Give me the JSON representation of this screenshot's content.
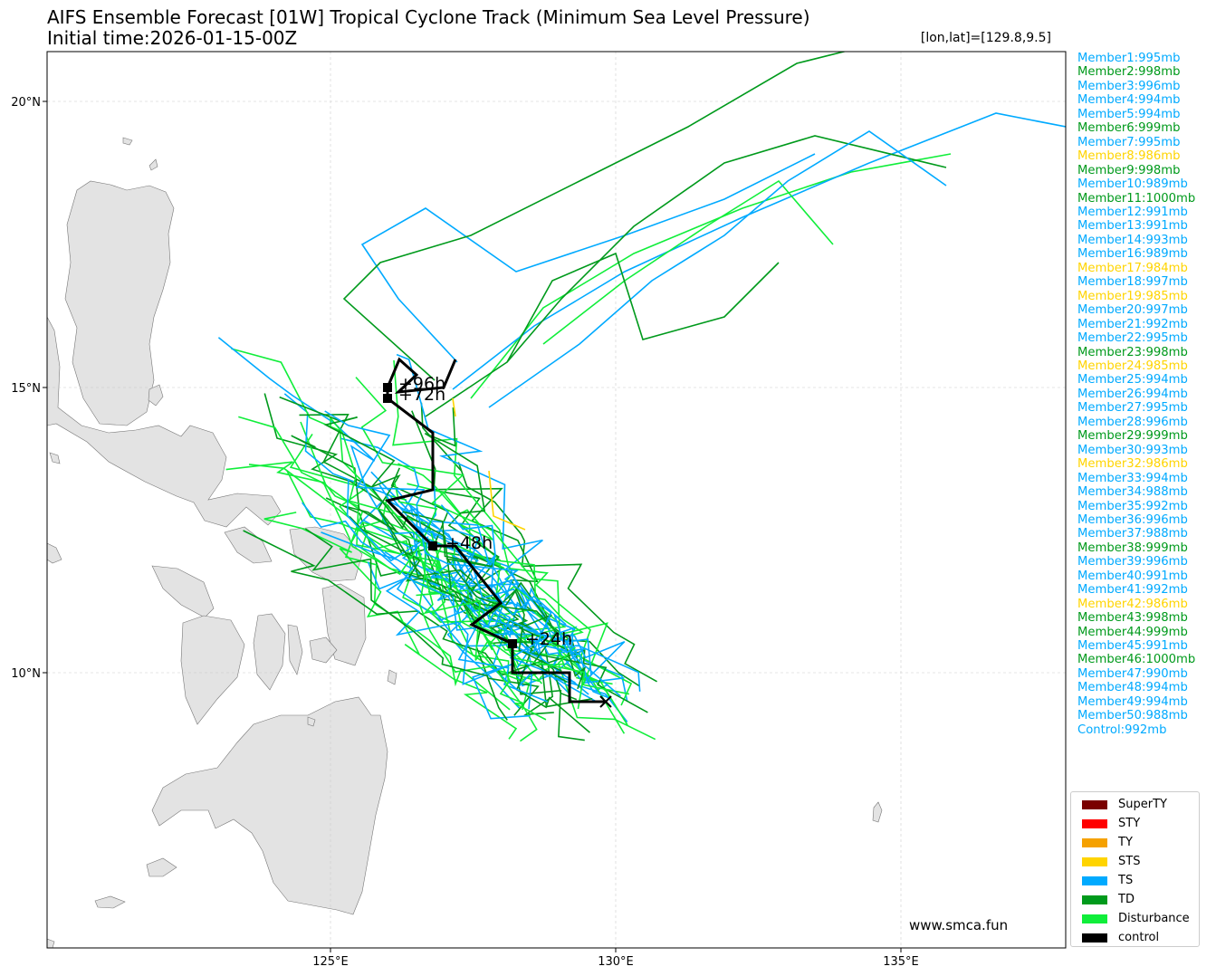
{
  "header": {
    "title": "AIFS Ensemble Forecast [01W] Tropical Cyclone Track (Minimum Sea Level Pressure)",
    "init_time": "Initial time:2026-01-15-00Z",
    "coord_readout": "[lon,lat]=[129.8,9.5]"
  },
  "axes": {
    "lat_ticks": [
      "20°N",
      "15°N",
      "10°N"
    ],
    "lon_ticks": [
      "125°E",
      "130°E",
      "135°E"
    ]
  },
  "colors": {
    "land": "#e3e3e3",
    "coast": "#777777",
    "SuperTY": "#7a0000",
    "STY": "#ff0000",
    "TY": "#f5a100",
    "STS": "#ffd400",
    "TS": "#00aaff",
    "TD": "#009a1c",
    "Disturbance": "#10ee3a",
    "control": "#000000"
  },
  "control_labels": [
    "+24h",
    "+48h",
    "+72h",
    "+96h"
  ],
  "members": [
    {
      "label": "Member1:995mb",
      "cat": "TS"
    },
    {
      "label": "Member2:998mb",
      "cat": "TD"
    },
    {
      "label": "Member3:996mb",
      "cat": "TS"
    },
    {
      "label": "Member4:994mb",
      "cat": "TS"
    },
    {
      "label": "Member5:994mb",
      "cat": "TS"
    },
    {
      "label": "Member6:999mb",
      "cat": "TD"
    },
    {
      "label": "Member7:995mb",
      "cat": "TS"
    },
    {
      "label": "Member8:986mb",
      "cat": "STS"
    },
    {
      "label": "Member9:998mb",
      "cat": "TD"
    },
    {
      "label": "Member10:989mb",
      "cat": "TS"
    },
    {
      "label": "Member11:1000mb",
      "cat": "TD"
    },
    {
      "label": "Member12:991mb",
      "cat": "TS"
    },
    {
      "label": "Member13:991mb",
      "cat": "TS"
    },
    {
      "label": "Member14:993mb",
      "cat": "TS"
    },
    {
      "label": "Member16:989mb",
      "cat": "TS"
    },
    {
      "label": "Member17:984mb",
      "cat": "STS"
    },
    {
      "label": "Member18:997mb",
      "cat": "TS"
    },
    {
      "label": "Member19:985mb",
      "cat": "STS"
    },
    {
      "label": "Member20:997mb",
      "cat": "TS"
    },
    {
      "label": "Member21:992mb",
      "cat": "TS"
    },
    {
      "label": "Member22:995mb",
      "cat": "TS"
    },
    {
      "label": "Member23:998mb",
      "cat": "TD"
    },
    {
      "label": "Member24:985mb",
      "cat": "STS"
    },
    {
      "label": "Member25:994mb",
      "cat": "TS"
    },
    {
      "label": "Member26:994mb",
      "cat": "TS"
    },
    {
      "label": "Member27:995mb",
      "cat": "TS"
    },
    {
      "label": "Member28:996mb",
      "cat": "TS"
    },
    {
      "label": "Member29:999mb",
      "cat": "TD"
    },
    {
      "label": "Member30:993mb",
      "cat": "TS"
    },
    {
      "label": "Member32:986mb",
      "cat": "STS"
    },
    {
      "label": "Member33:994mb",
      "cat": "TS"
    },
    {
      "label": "Member34:988mb",
      "cat": "TS"
    },
    {
      "label": "Member35:992mb",
      "cat": "TS"
    },
    {
      "label": "Member36:996mb",
      "cat": "TS"
    },
    {
      "label": "Member37:988mb",
      "cat": "TS"
    },
    {
      "label": "Member38:999mb",
      "cat": "TD"
    },
    {
      "label": "Member39:996mb",
      "cat": "TS"
    },
    {
      "label": "Member40:991mb",
      "cat": "TS"
    },
    {
      "label": "Member41:992mb",
      "cat": "TS"
    },
    {
      "label": "Member42:986mb",
      "cat": "STS"
    },
    {
      "label": "Member43:998mb",
      "cat": "TD"
    },
    {
      "label": "Member44:999mb",
      "cat": "TD"
    },
    {
      "label": "Member45:991mb",
      "cat": "TS"
    },
    {
      "label": "Member46:1000mb",
      "cat": "TD"
    },
    {
      "label": "Member47:990mb",
      "cat": "TS"
    },
    {
      "label": "Member48:994mb",
      "cat": "TS"
    },
    {
      "label": "Member49:994mb",
      "cat": "TS"
    },
    {
      "label": "Member50:988mb",
      "cat": "TS"
    },
    {
      "label": "Control:992mb",
      "cat": "TS"
    }
  ],
  "legend": [
    {
      "label": "SuperTY",
      "cat": "SuperTY"
    },
    {
      "label": "STY",
      "cat": "STY"
    },
    {
      "label": "TY",
      "cat": "TY"
    },
    {
      "label": "STS",
      "cat": "STS"
    },
    {
      "label": "TS",
      "cat": "TS"
    },
    {
      "label": "TD",
      "cat": "TD"
    },
    {
      "label": "Disturbance",
      "cat": "Disturbance"
    },
    {
      "label": "control",
      "cat": "control"
    }
  ],
  "watermark": "www.smca.fun"
}
